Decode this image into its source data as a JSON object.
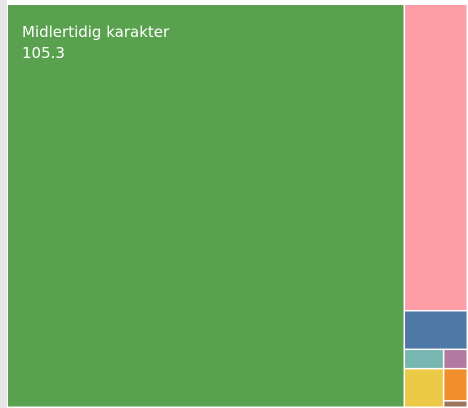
{
  "chart_data": {
    "type": "treemap",
    "categories": [
      "Midlertidig karakter",
      null,
      null,
      null,
      null,
      null,
      null,
      null
    ],
    "values": [
      105.3,
      12.7,
      1.6,
      0.5,
      1.0,
      0.3,
      0.5,
      0.1
    ],
    "colors": [
      "#59a14f",
      "#ff9da7",
      "#4e79a7",
      "#76b7b2",
      "#edc948",
      "#b07aa1",
      "#f28e2b",
      "#9c755f"
    ]
  }
}
